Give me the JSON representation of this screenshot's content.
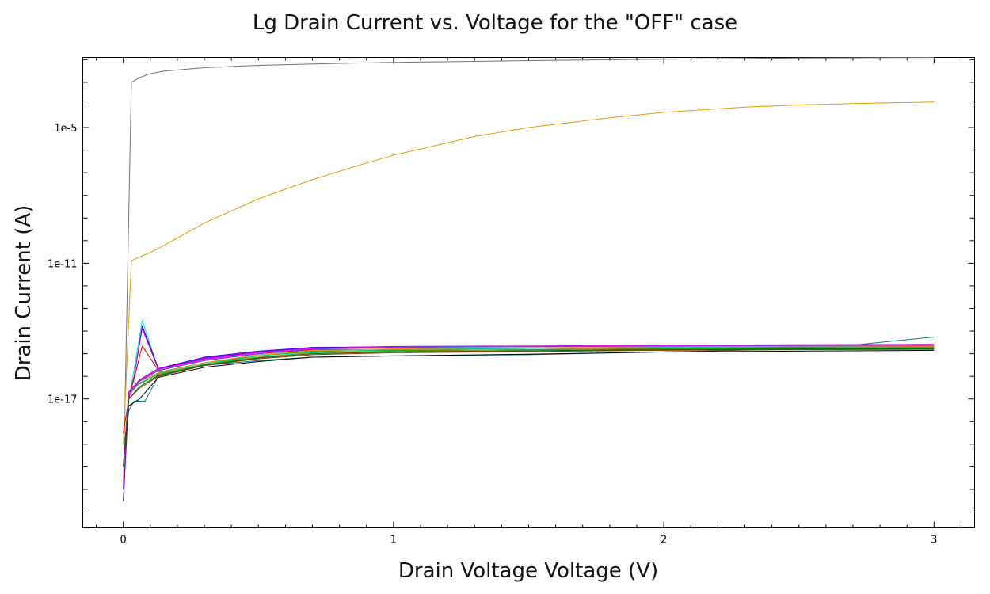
{
  "chart_data": {
    "type": "line",
    "title": "Lg Drain Current vs. Voltage for the \"OFF\" case",
    "xlabel": "Drain Voltage Voltage (V)",
    "ylabel": "Drain Current (A)",
    "xlim": [
      -0.15,
      3.15
    ],
    "ylim_log10": [
      -22.7,
      -1.9
    ],
    "yscale": "log",
    "grid": false,
    "x_ticks": [
      0,
      1,
      2,
      3
    ],
    "x_tick_labels": [
      "0",
      "1",
      "2",
      "3"
    ],
    "y_ticks_log10": [
      -5,
      -11,
      -17
    ],
    "y_tick_labels": [
      "1e-5",
      "1e-11",
      "1e-17"
    ],
    "series": [
      {
        "color": "#707070",
        "x": [
          0,
          0.03,
          0.06,
          0.1,
          0.15,
          0.2,
          0.3,
          0.5,
          0.8,
          1.0,
          1.5,
          2.0,
          2.5,
          3.0
        ],
        "y": [
          1e-21,
          0.001,
          0.0016,
          0.0024,
          0.0031,
          0.0035,
          0.0044,
          0.0056,
          0.0069,
          0.0076,
          0.0091,
          0.0105,
          0.0118,
          0.013
        ]
      },
      {
        "color": "#e69a00",
        "x": [
          0,
          0.03,
          0.06,
          0.1,
          0.13,
          0.2,
          0.3,
          0.5,
          0.7,
          0.9,
          1.0,
          1.3,
          1.5,
          1.8,
          2.0,
          2.3,
          2.5,
          2.7,
          3.0
        ],
        "y": [
          1e-19,
          1.3e-11,
          1.9e-11,
          3e-11,
          4.5e-11,
          1.3e-10,
          6e-10,
          7e-09,
          5e-08,
          2.7e-07,
          6e-07,
          4e-06,
          1e-05,
          2.7e-05,
          4.7e-05,
          8e-05,
          0.0001,
          0.000115,
          0.000135
        ]
      },
      {
        "color": "#00e5e5",
        "x": [
          0,
          0.02,
          0.04,
          0.07,
          0.13,
          0.3,
          0.5,
          0.7,
          1.0,
          1.5,
          2.0,
          2.5,
          3.0
        ],
        "y": [
          1e-20,
          1e-17,
          2e-16,
          3e-14,
          2e-16,
          6e-16,
          1.2e-15,
          1.7e-15,
          1.9e-15,
          2e-15,
          2.1e-15,
          2.2e-15,
          2.25e-15
        ]
      },
      {
        "color": "#0000ee",
        "x": [
          0,
          0.02,
          0.04,
          0.07,
          0.13,
          0.3,
          0.5,
          0.7,
          1.0,
          1.5,
          2.0,
          2.5,
          3.0
        ],
        "y": [
          3e-22,
          1e-17,
          1e-16,
          1.7e-14,
          2.2e-16,
          7e-16,
          1.3e-15,
          1.9e-15,
          2e-15,
          2.1e-15,
          2.3e-15,
          2.4e-15,
          2.5e-15
        ]
      },
      {
        "color": "#cc00cc",
        "x": [
          0,
          0.02,
          0.04,
          0.07,
          0.13,
          0.3,
          0.5,
          0.7,
          1.0,
          1.5,
          2.0,
          2.5,
          3.0
        ],
        "y": [
          1e-21,
          1e-17,
          1e-16,
          1.3e-14,
          2e-16,
          6.5e-16,
          1.25e-15,
          1.8e-15,
          1.95e-15,
          2.05e-15,
          2.2e-15,
          2.3e-15,
          2.35e-15
        ]
      },
      {
        "color": "#dd0000",
        "x": [
          0,
          0.02,
          0.04,
          0.07,
          0.13,
          0.3,
          0.5,
          0.7,
          1.0,
          1.5,
          2.0,
          2.5,
          3.0
        ],
        "y": [
          3e-19,
          1e-17,
          8e-17,
          2.2e-15,
          1.8e-16,
          5e-16,
          1e-15,
          1.5e-15,
          1.6e-15,
          1.7e-15,
          1.8e-15,
          1.85e-15,
          1.9e-15
        ]
      },
      {
        "color": "#00aa00",
        "x": [
          0,
          0.02,
          0.05,
          0.1,
          0.13,
          0.3,
          0.5,
          0.7,
          1.0,
          1.5,
          2.0,
          2.5,
          3.0
        ],
        "y": [
          1e-20,
          1.5e-17,
          4e-17,
          8e-17,
          1.5e-16,
          4e-16,
          8e-16,
          1.3e-15,
          1.4e-15,
          1.5e-15,
          1.6e-15,
          1.65e-15,
          1.7e-15
        ]
      },
      {
        "color": "#008080",
        "x": [
          0,
          0.02,
          0.04,
          0.08,
          0.13,
          0.3,
          0.5,
          0.7,
          1.0,
          1.5,
          2.0,
          2.5,
          2.7,
          3.0
        ],
        "y": [
          1e-20,
          3e-18,
          8e-18,
          8e-18,
          1e-16,
          3e-16,
          5e-16,
          7e-16,
          8e-16,
          9e-16,
          1.2e-15,
          1.6e-15,
          2.4e-15,
          5.5e-15
        ]
      },
      {
        "color": "#000000",
        "x": [
          0,
          0.02,
          0.06,
          0.13,
          0.3,
          0.5,
          0.7,
          1.0,
          1.5,
          2.0,
          2.5,
          3.0
        ],
        "y": [
          1e-20,
          5e-18,
          1e-17,
          9e-17,
          2.5e-16,
          4.5e-16,
          7e-16,
          8e-16,
          9.5e-16,
          1.2e-15,
          1.3e-15,
          1.4e-15
        ]
      },
      {
        "color": "#808000",
        "x": [
          0,
          0.02,
          0.06,
          0.13,
          0.3,
          0.5,
          0.7,
          1.0,
          1.5,
          2.0,
          2.5,
          3.0
        ],
        "y": [
          1e-20,
          2e-17,
          5e-17,
          1.2e-16,
          3.5e-16,
          7e-16,
          1.1e-15,
          1.3e-15,
          1.5e-15,
          1.7e-15,
          1.8e-15,
          1.9e-15
        ]
      },
      {
        "color": "#ff8800",
        "x": [
          0,
          0.02,
          0.06,
          0.13,
          0.3,
          0.5,
          0.7,
          1.0,
          1.5,
          2.0,
          2.5,
          3.0
        ],
        "y": [
          1e-20,
          2e-17,
          6e-17,
          1.4e-16,
          4e-16,
          9e-16,
          1.4e-15,
          1.6e-15,
          1.8e-15,
          2e-15,
          2.1e-15,
          2.2e-15
        ]
      },
      {
        "color": "#8800cc",
        "x": [
          0,
          0.02,
          0.06,
          0.13,
          0.3,
          0.5,
          0.7,
          1.0,
          1.5,
          2.0,
          2.5,
          3.0
        ],
        "y": [
          1e-20,
          2e-17,
          7e-17,
          2.2e-16,
          6e-16,
          1.2e-15,
          1.8e-15,
          2.1e-15,
          2.2e-15,
          2.4e-15,
          2.5e-15,
          2.6e-15
        ]
      },
      {
        "color": "#00cc88",
        "x": [
          0,
          0.02,
          0.06,
          0.13,
          0.3,
          0.5,
          0.7,
          1.0,
          1.5,
          2.0,
          2.5,
          3.0
        ],
        "y": [
          1e-20,
          1.5e-17,
          5e-17,
          1.3e-16,
          3.5e-16,
          8e-16,
          1.2e-15,
          1.5e-15,
          1.7e-15,
          1.9e-15,
          2e-15,
          2.05e-15
        ]
      },
      {
        "color": "#4444ff",
        "x": [
          0,
          0.02,
          0.06,
          0.13,
          0.3,
          0.5,
          0.7,
          1.0,
          1.5,
          2.0,
          2.5,
          3.0
        ],
        "y": [
          1e-20,
          1.5e-17,
          6e-17,
          1.8e-16,
          5e-16,
          1e-15,
          1.6e-15,
          1.9e-15,
          2.1e-15,
          2.3e-15,
          2.4e-15,
          2.45e-15
        ]
      },
      {
        "color": "#993300",
        "x": [
          0,
          0.02,
          0.06,
          0.13,
          0.3,
          0.5,
          0.7,
          1.0,
          1.5,
          2.0,
          2.5,
          3.0
        ],
        "y": [
          1e-20,
          1e-17,
          3e-17,
          1e-16,
          3e-16,
          6e-16,
          9e-16,
          1.1e-15,
          1.25e-15,
          1.4e-15,
          1.5e-15,
          1.55e-15
        ]
      },
      {
        "color": "#ff00ff",
        "x": [
          0,
          0.02,
          0.06,
          0.13,
          0.3,
          0.5,
          0.7,
          1.0,
          1.5,
          2.0,
          2.5,
          3.0
        ],
        "y": [
          1e-20,
          1.5e-17,
          6.5e-17,
          2e-16,
          5.5e-16,
          1.1e-15,
          1.7e-15,
          2e-15,
          2.15e-15,
          2.35e-15,
          2.45e-15,
          2.5e-15
        ]
      },
      {
        "color": "#006600",
        "x": [
          0,
          0.02,
          0.06,
          0.13,
          0.3,
          0.5,
          0.7,
          1.0,
          1.5,
          2.0,
          2.5,
          3.0
        ],
        "y": [
          1e-20,
          1e-17,
          3.5e-17,
          1.1e-16,
          3.2e-16,
          6.5e-16,
          1e-15,
          1.2e-15,
          1.35e-15,
          1.5e-15,
          1.6e-15,
          1.65e-15
        ]
      }
    ]
  }
}
